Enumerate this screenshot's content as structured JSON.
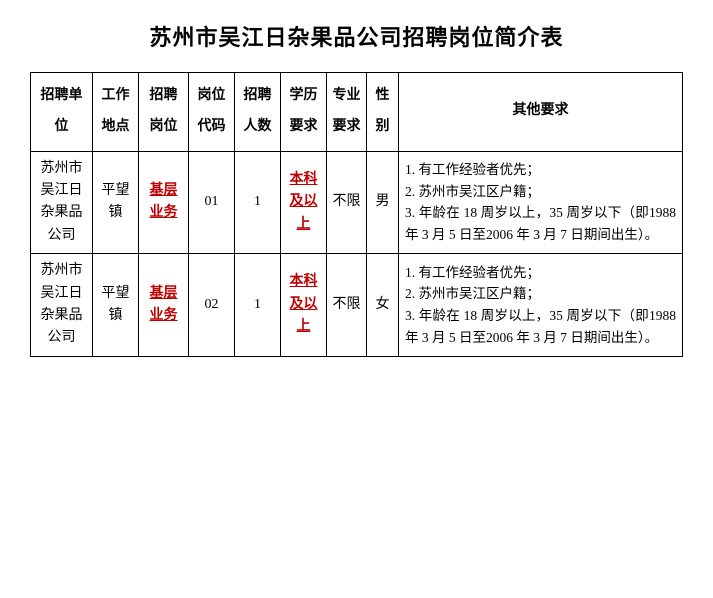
{
  "title": "苏州市吴江日杂果品公司招聘岗位简介表",
  "table": {
    "headers": {
      "unit": "招聘单位",
      "location": "工作地点",
      "position": "招聘岗位",
      "code": "岗位代码",
      "headcount": "招聘人数",
      "education": "学历要求",
      "major": "专业要求",
      "gender": "性别",
      "other": "其他要求"
    },
    "rows": [
      {
        "unit": "苏州市吴江日杂果品公司",
        "location": "平望镇",
        "position": "基层业务",
        "code": "01",
        "headcount": "1",
        "education": "本科及以上",
        "major": "不限",
        "gender": "男",
        "other": "1. 有工作经验者优先；\n2. 苏州市吴江区户籍；\n3. 年龄在 18 周岁以上，35 周岁以下（即1988 年 3 月 5 日至2006 年 3 月 7 日期间出生）。"
      },
      {
        "unit": "苏州市吴江日杂果品公司",
        "location": "平望镇",
        "position": "基层业务",
        "code": "02",
        "headcount": "1",
        "education": "本科及以上",
        "major": "不限",
        "gender": "女",
        "other": "1. 有工作经验者优先；\n2. 苏州市吴江区户籍；\n3. 年龄在 18 周岁以上，35 周岁以下（即1988 年 3 月 5 日至2006 年 3 月 7 日期间出生）。"
      }
    ]
  },
  "colors": {
    "text": "#000000",
    "red": "#c00000",
    "border": "#000000",
    "background": "#ffffff"
  },
  "typography": {
    "title_fontsize": 22,
    "cell_fontsize": 14,
    "req_fontsize": 13.5,
    "font_family": "SimSun"
  }
}
